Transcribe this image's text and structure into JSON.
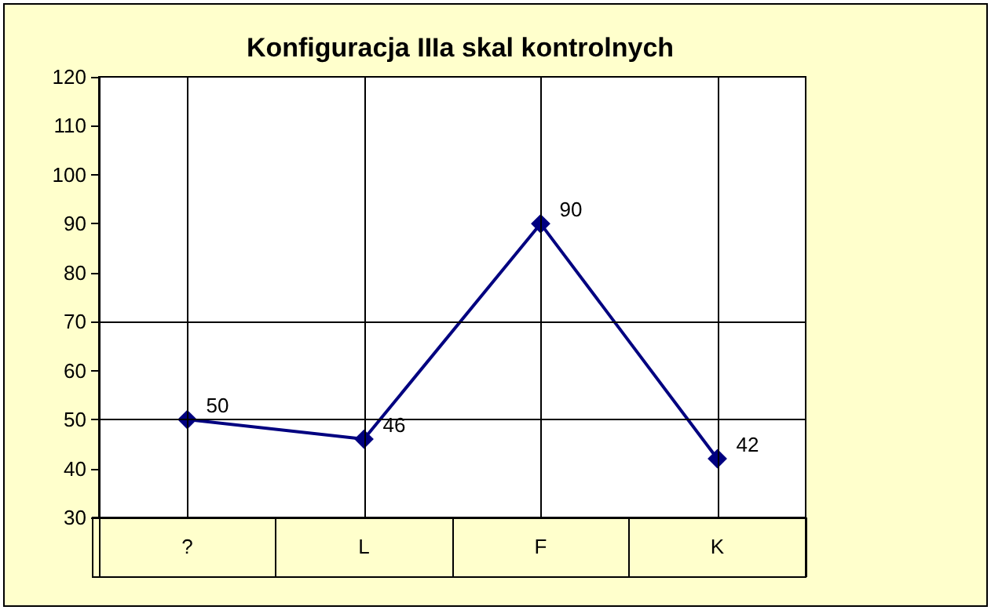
{
  "chart_data": {
    "type": "line",
    "title": "Konfiguracja IIIa skal kontrolnych",
    "categories": [
      "?",
      "L",
      "F",
      "K"
    ],
    "series": [
      {
        "color": "#000080",
        "values": [
          50,
          46,
          90,
          42
        ]
      }
    ],
    "ylim": [
      30,
      120
    ],
    "yticks": [
      30,
      40,
      50,
      60,
      70,
      80,
      90,
      100,
      110,
      120
    ],
    "grid": "x",
    "marker": "diamond",
    "line_style": "solid",
    "data_labels": true,
    "ref_lines": [
      {
        "axis": "y",
        "value": 50,
        "color": "#000000"
      },
      {
        "axis": "y",
        "value": 70,
        "color": "#000000"
      }
    ]
  }
}
